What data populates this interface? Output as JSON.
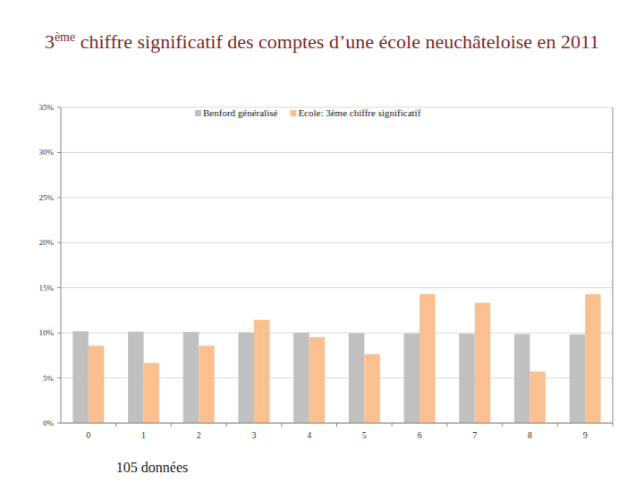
{
  "chart_data": {
    "type": "bar",
    "title": "3ème chiffre significatif des comptes d’une école neuchâteloise en 2011",
    "annotation": "105 données",
    "categories": [
      "0",
      "1",
      "2",
      "3",
      "4",
      "5",
      "6",
      "7",
      "8",
      "9"
    ],
    "series": [
      {
        "name": "Benford généralisé",
        "color": "#c0c0c0",
        "values": [
          10.18,
          10.14,
          10.1,
          10.06,
          10.02,
          9.98,
          9.94,
          9.9,
          9.86,
          9.83
        ]
      },
      {
        "name": "Ecole: 3ème chiffre significatif",
        "color": "#fac090",
        "values": [
          8.57,
          6.67,
          8.57,
          11.43,
          9.52,
          7.62,
          14.29,
          13.33,
          5.71,
          14.29
        ]
      }
    ],
    "ylim": [
      0,
      35
    ],
    "yticks": [
      {
        "value": 0,
        "label": "0%"
      },
      {
        "value": 5,
        "label": "5%"
      },
      {
        "value": 10,
        "label": "10%"
      },
      {
        "value": 15,
        "label": "15%"
      },
      {
        "value": 20,
        "label": "20%"
      },
      {
        "value": 25,
        "label": "25%"
      },
      {
        "value": 30,
        "label": "30%"
      },
      {
        "value": 35,
        "label": "35%"
      }
    ],
    "grid": true,
    "legend": "top"
  }
}
